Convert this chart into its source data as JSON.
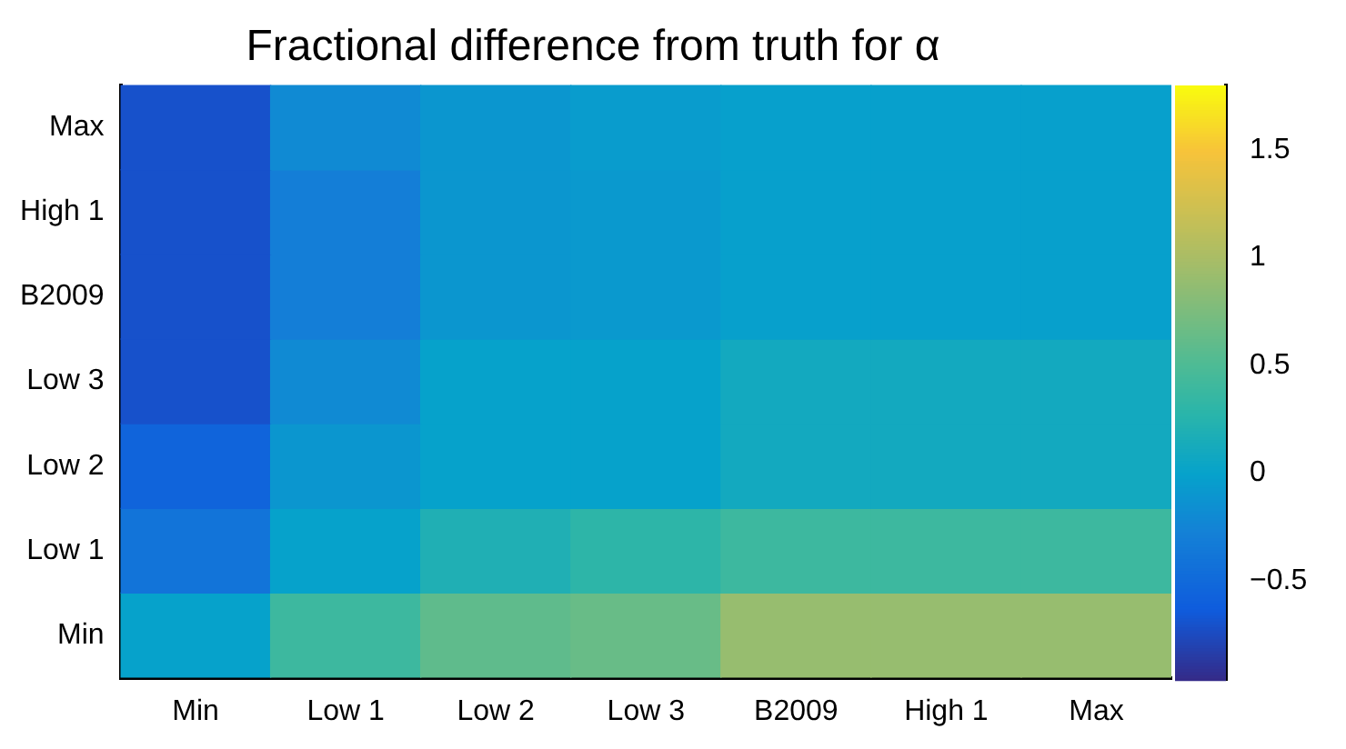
{
  "chart_data": {
    "type": "heatmap",
    "title": "Fractional difference from truth for α",
    "categories": [
      "Min",
      "Low 1",
      "Low 2",
      "Low 3",
      "B2009",
      "High 1",
      "Max"
    ],
    "y_categories": [
      "Max",
      "High 1",
      "B2009",
      "Low 3",
      "Low 2",
      "Low 1",
      "Min"
    ],
    "cells": [
      [
        -0.7,
        -0.2,
        -0.1,
        -0.05,
        -0.02,
        -0.02,
        -0.02
      ],
      [
        -0.7,
        -0.3,
        -0.1,
        -0.07,
        -0.02,
        -0.02,
        -0.02
      ],
      [
        -0.7,
        -0.3,
        -0.1,
        -0.07,
        -0.02,
        -0.02,
        -0.02
      ],
      [
        -0.7,
        -0.2,
        0.0,
        0.0,
        0.1,
        0.1,
        0.1
      ],
      [
        -0.55,
        -0.1,
        0.0,
        0.0,
        0.1,
        0.1,
        0.1
      ],
      [
        -0.4,
        0.0,
        0.2,
        0.3,
        0.4,
        0.4,
        0.4
      ],
      [
        0.0,
        0.4,
        0.6,
        0.65,
        0.9,
        0.9,
        0.9
      ]
    ],
    "clim": [
      -0.96,
      1.8
    ],
    "cticks": [
      -0.5,
      0,
      0.5,
      1,
      1.5
    ]
  }
}
